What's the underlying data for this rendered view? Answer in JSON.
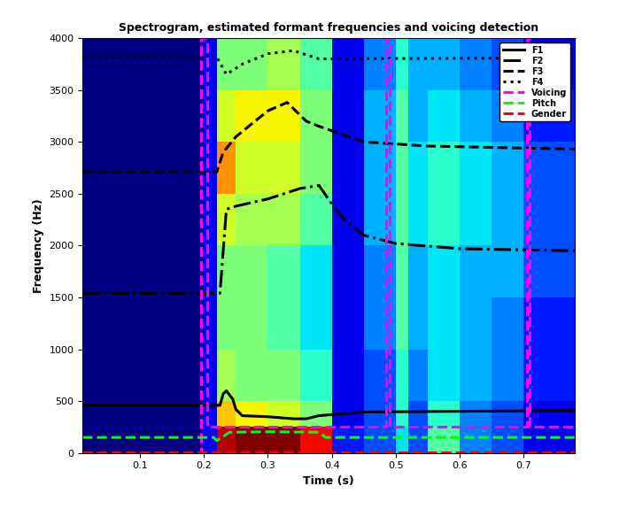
{
  "chart_data": {
    "type": "line",
    "title": "Spectrogram, estimated formant frequencies and voicing detection",
    "x_label": "Time (s)",
    "y_label": "Frequency (Hz)",
    "xlim": [
      0.01,
      0.78
    ],
    "ylim": [
      0,
      4000
    ],
    "xticks": [
      0.1,
      0.2,
      0.3,
      0.4,
      0.5,
      0.6,
      0.7
    ],
    "yticks": [
      0,
      500,
      1000,
      1500,
      2000,
      2500,
      3000,
      3500,
      4000
    ],
    "legend": "upper right",
    "spectrogram": {
      "time_edges": [
        0.01,
        0.2,
        0.22,
        0.25,
        0.3,
        0.35,
        0.4,
        0.45,
        0.5,
        0.52,
        0.55,
        0.6,
        0.65,
        0.7,
        0.78
      ],
      "freq_edges": [
        0,
        250,
        500,
        1000,
        1500,
        2000,
        2500,
        3000,
        3500,
        4000
      ],
      "clim": [
        0,
        1
      ],
      "cells": [
        [
          0,
          0.1,
          0.95,
          1.0,
          1.0,
          0.9,
          0.15,
          0.2,
          0.35,
          0.2,
          0.45,
          0.25,
          0.2,
          0.1
        ],
        [
          0,
          0.1,
          0.7,
          0.65,
          0.6,
          0.5,
          0.1,
          0.2,
          0.4,
          0.2,
          0.4,
          0.25,
          0.2,
          0.1
        ],
        [
          0,
          0.1,
          0.55,
          0.5,
          0.5,
          0.4,
          0.1,
          0.2,
          0.4,
          0.25,
          0.35,
          0.3,
          0.25,
          0.15
        ],
        [
          0,
          0.1,
          0.5,
          0.5,
          0.45,
          0.35,
          0.1,
          0.25,
          0.45,
          0.3,
          0.35,
          0.3,
          0.25,
          0.15
        ],
        [
          0,
          0.1,
          0.5,
          0.5,
          0.45,
          0.35,
          0.1,
          0.25,
          0.45,
          0.3,
          0.35,
          0.3,
          0.3,
          0.2
        ],
        [
          0,
          0.1,
          0.6,
          0.55,
          0.55,
          0.45,
          0.1,
          0.3,
          0.45,
          0.35,
          0.4,
          0.35,
          0.3,
          0.2
        ],
        [
          0,
          0.1,
          0.75,
          0.6,
          0.6,
          0.5,
          0.1,
          0.3,
          0.45,
          0.35,
          0.4,
          0.35,
          0.3,
          0.2
        ],
        [
          0,
          0.1,
          0.6,
          0.65,
          0.65,
          0.5,
          0.1,
          0.3,
          0.45,
          0.3,
          0.35,
          0.3,
          0.25,
          0.15
        ],
        [
          0,
          0.1,
          0.5,
          0.5,
          0.55,
          0.45,
          0.1,
          0.25,
          0.4,
          0.3,
          0.3,
          0.25,
          0.2,
          0.1
        ]
      ]
    },
    "series": [
      {
        "name": "F1",
        "color": "#000000",
        "line_style": "solid",
        "x": [
          0.01,
          0.225,
          0.23,
          0.235,
          0.245,
          0.25,
          0.26,
          0.3,
          0.34,
          0.36,
          0.38,
          0.45,
          0.55,
          0.78
        ],
        "values": [
          460,
          460,
          570,
          600,
          520,
          420,
          360,
          350,
          330,
          330,
          360,
          395,
          400,
          410
        ]
      },
      {
        "name": "F2",
        "color": "#000000",
        "line_style": "dashdot",
        "x": [
          0.01,
          0.225,
          0.235,
          0.25,
          0.3,
          0.35,
          0.38,
          0.4,
          0.42,
          0.45,
          0.5,
          0.6,
          0.78
        ],
        "values": [
          1540,
          1540,
          2350,
          2380,
          2450,
          2550,
          2580,
          2400,
          2250,
          2100,
          2020,
          1970,
          1950
        ]
      },
      {
        "name": "F3",
        "color": "#000000",
        "line_style": "dashed",
        "x": [
          0.01,
          0.22,
          0.23,
          0.25,
          0.3,
          0.33,
          0.36,
          0.38,
          0.45,
          0.55,
          0.78
        ],
        "values": [
          2710,
          2710,
          2900,
          3050,
          3300,
          3380,
          3200,
          3150,
          3000,
          2960,
          2930
        ]
      },
      {
        "name": "F4",
        "color": "#000000",
        "line_style": "dotted",
        "x": [
          0.01,
          0.22,
          0.235,
          0.26,
          0.3,
          0.34,
          0.38,
          0.78
        ],
        "values": [
          3820,
          3820,
          3650,
          3750,
          3850,
          3880,
          3800,
          3810
        ]
      },
      {
        "name": "Voicing",
        "color": "#ff00ff",
        "line_style": "dashed",
        "x": [
          0.01,
          0.195,
          0.195,
          0.205,
          0.205,
          0.485,
          0.485,
          0.49,
          0.49,
          0.705,
          0.705,
          0.71,
          0.71,
          0.78
        ],
        "values": [
          0,
          0,
          4000,
          4000,
          250,
          250,
          4000,
          4000,
          250,
          250,
          4000,
          4000,
          250,
          250
        ]
      },
      {
        "name": "Pitch",
        "color": "#00ff00",
        "line_style": "dashed",
        "x": [
          0.01,
          0.215,
          0.22,
          0.24,
          0.3,
          0.38,
          0.39,
          0.78
        ],
        "values": [
          150,
          150,
          120,
          200,
          205,
          200,
          150,
          150
        ]
      },
      {
        "name": "Gender",
        "color": "#ff0000",
        "line_style": "dashed",
        "x": [
          0.01,
          0.78
        ],
        "values": [
          5,
          5
        ]
      }
    ]
  }
}
